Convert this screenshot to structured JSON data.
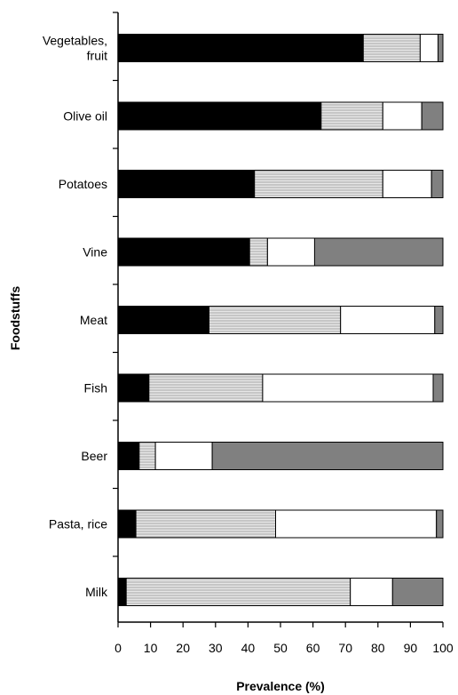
{
  "chart_data": {
    "type": "bar",
    "orientation": "horizontal",
    "stacked": true,
    "title": "",
    "xlabel": "Prevalence (%)",
    "ylabel": "Foodstuffs",
    "xlim": [
      0,
      100
    ],
    "xticks": [
      0,
      10,
      20,
      30,
      40,
      50,
      60,
      70,
      80,
      90,
      100
    ],
    "grid": false,
    "legend": "none",
    "categories": [
      [
        "Vegetables,",
        "fruit"
      ],
      [
        "Olive oil"
      ],
      [
        "Potatoes"
      ],
      [
        "Vine"
      ],
      [
        "Meat"
      ],
      [
        "Fish"
      ],
      [
        "Beer"
      ],
      [
        "Pasta, rice"
      ],
      [
        "Milk"
      ]
    ],
    "series": [
      {
        "color": "#000000",
        "values": [
          75.5,
          62.5,
          42,
          40.5,
          28,
          9.5,
          6.5,
          5.5,
          2.5
        ]
      },
      {
        "color": "#d9d9d9",
        "pattern": "hatch",
        "values": [
          17.5,
          19,
          39.5,
          5.5,
          40.5,
          35,
          5,
          43,
          69
        ]
      },
      {
        "color": "#ffffff",
        "values": [
          5.5,
          12,
          15,
          14.5,
          29,
          52.5,
          17.5,
          49.5,
          13
        ]
      },
      {
        "color": "#808080",
        "values": [
          1.5,
          6.5,
          3.5,
          39.5,
          2.5,
          3,
          71,
          2,
          15.5
        ]
      }
    ]
  }
}
